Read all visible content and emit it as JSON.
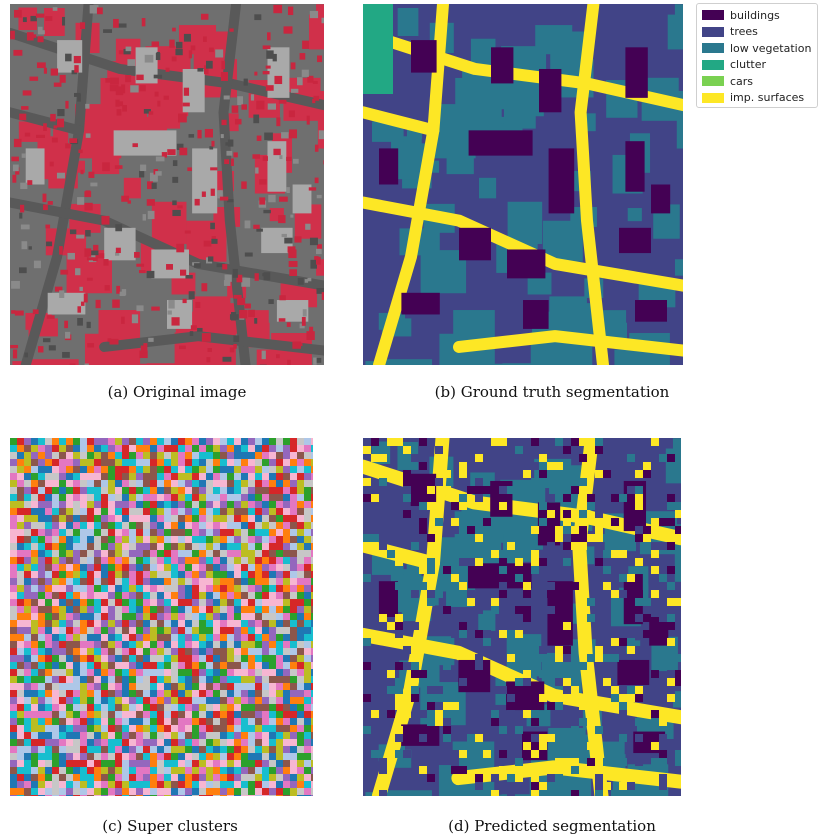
{
  "figure": {
    "captions": {
      "a": "(a) Original image",
      "b": "(b) Ground truth segmentation",
      "c": "(c) Super clusters",
      "d": "(d) Predicted segmentation"
    }
  },
  "legend": {
    "items": [
      {
        "label": "buildings",
        "color": "#440154"
      },
      {
        "label": "trees",
        "color": "#414487"
      },
      {
        "label": "low vegetation",
        "color": "#2a788e"
      },
      {
        "label": "clutter",
        "color": "#22a884"
      },
      {
        "label": "cars",
        "color": "#7ad151"
      },
      {
        "label": "imp. surfaces",
        "color": "#fde725"
      }
    ]
  },
  "colors": {
    "aerial_ground": "#6f6f6f",
    "aerial_vegetation": "#d0304a",
    "aerial_roof": "#a9a9a9",
    "cluster_palette": [
      "#1f77b4",
      "#ff7f0e",
      "#2ca02c",
      "#d62728",
      "#9467bd",
      "#8c564b",
      "#e377c2",
      "#bcbd22",
      "#17becf",
      "#aec7e8",
      "#c7c7c7",
      "#f7b6d2"
    ]
  }
}
